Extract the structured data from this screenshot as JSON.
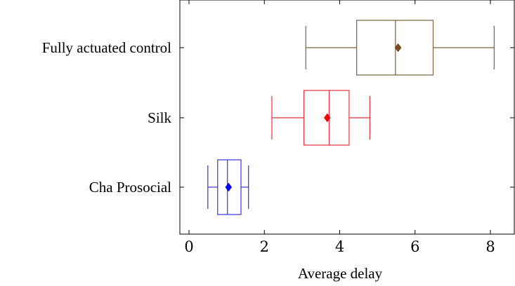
{
  "chart_data": {
    "type": "boxplot",
    "orientation": "horizontal",
    "title": "",
    "xlabel": "Average delay",
    "ylabel": "",
    "xlim": [
      -0.25,
      8.6
    ],
    "xticks": [
      0,
      2,
      4,
      6,
      8
    ],
    "grid": false,
    "legend": "none",
    "categories": [
      "Fully actuated control",
      "Silk",
      "Cha Prosocial"
    ],
    "series": [
      {
        "category": "Fully actuated control",
        "color": "#7a6143",
        "mean_color": "#7a4a22",
        "whisker_low": 3.1,
        "q1": 4.45,
        "median": 5.48,
        "q3": 6.48,
        "whisker_high": 8.1,
        "mean": 5.55
      },
      {
        "category": "Silk",
        "color": "#e8313b",
        "mean_color": "#ff0000",
        "whisker_low": 2.2,
        "q1": 3.05,
        "median": 3.72,
        "q3": 4.25,
        "whisker_high": 4.8,
        "mean": 3.67
      },
      {
        "category": "Cha Prosocial",
        "color": "#3535e0",
        "mean_color": "#0000ff",
        "whisker_low": 0.5,
        "q1": 0.76,
        "median": 1.02,
        "q3": 1.38,
        "whisker_high": 1.58,
        "mean": 1.05
      }
    ]
  }
}
